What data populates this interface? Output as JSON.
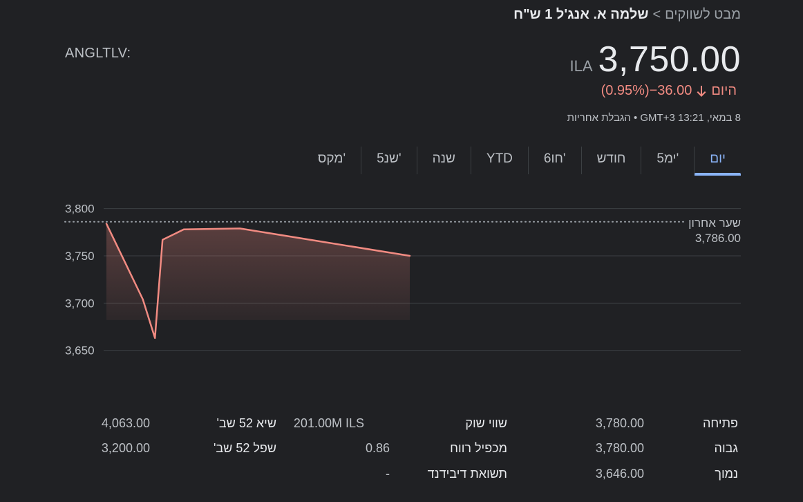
{
  "breadcrumb": {
    "link": "מבט לשווקים",
    "separator": ">",
    "current": "שלמה א. אנג'ל 1 ש\"ח"
  },
  "ticker": "ANGLTLV:",
  "price": {
    "currency": "ILA",
    "value": "3,750.00"
  },
  "change": {
    "amount": "−36.00",
    "percent": "(0.95%)",
    "period": "היום",
    "direction_icon": "arrow-down-icon"
  },
  "timestamp": "8 במאי, 13:21 GMT+3 • הגבלת אחריות",
  "tabs": [
    "יום",
    "5ימ'",
    "חודש",
    "6חו'",
    "YTD",
    "שנה",
    "5שנ'",
    "מקס'"
  ],
  "active_tab": 0,
  "prev_close": {
    "label": "שער אחרון",
    "value": "3,786.00"
  },
  "chart_data": {
    "type": "area",
    "y_tick_labels": [
      "3,800",
      "3,750",
      "3,700",
      "3,650"
    ],
    "y_ticks": [
      3800,
      3750,
      3700,
      3650
    ],
    "ylim": [
      3630,
      3810
    ],
    "reference_line": 3786,
    "series": [
      {
        "values": [
          3784,
          3704,
          3663,
          3767,
          3778,
          3779,
          3750
        ],
        "color": "#f28b82"
      }
    ],
    "grid": true
  },
  "stats": {
    "col1": [
      {
        "label": "פתיחה",
        "value": "3,780.00"
      },
      {
        "label": "גבוה",
        "value": "3,780.00"
      },
      {
        "label": "נמוך",
        "value": "3,646.00"
      }
    ],
    "col2": [
      {
        "label": "שווי שוק",
        "value": "201.00M ILS"
      },
      {
        "label": "מכפיל רווח",
        "value": "0.86"
      },
      {
        "label": "תשואת דיבידנד",
        "value": "-"
      }
    ],
    "col3": [
      {
        "label": "שיא 52 שב'",
        "value": "4,063.00"
      },
      {
        "label": "שפל 52 שב'",
        "value": "3,200.00"
      }
    ]
  },
  "colors": {
    "background": "#202124",
    "line": "#f28b82",
    "accent": "#8ab4f8"
  }
}
